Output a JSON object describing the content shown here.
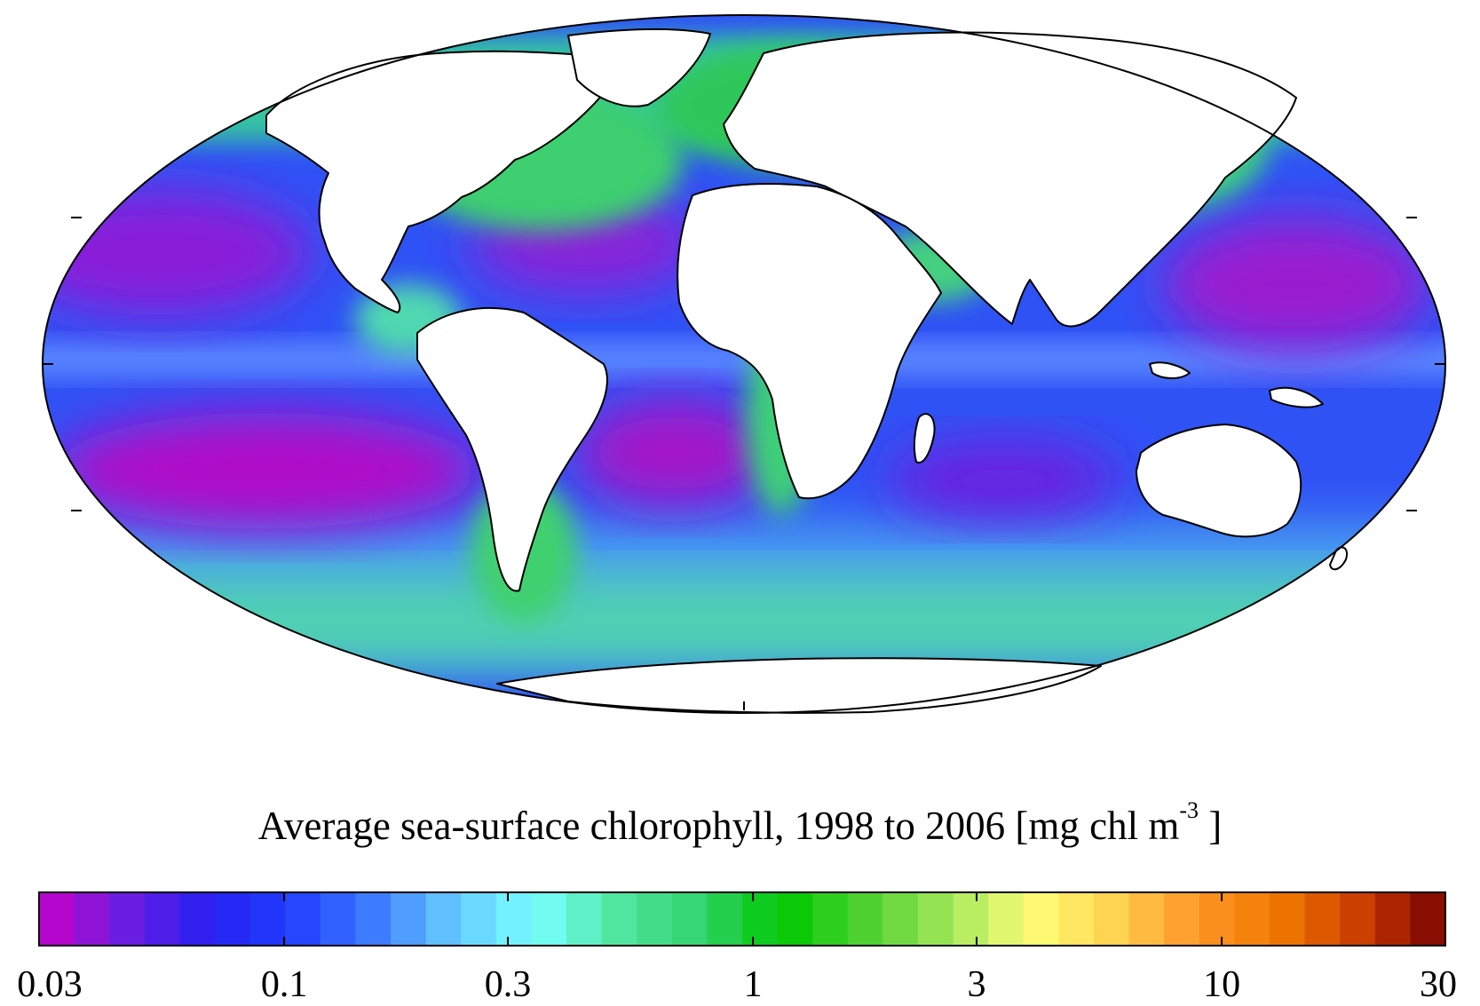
{
  "title": {
    "text": "Average sea-surface chlorophyll, 1998 to 2006 [mg chl m",
    "superscript": "-3",
    "suffix": " ]"
  },
  "colorbar": {
    "scale": "log",
    "range": [
      0.03,
      30
    ],
    "tick_labels": [
      "0.03",
      "0.1",
      "0.3",
      "1",
      "3",
      "10",
      "30"
    ],
    "tick_values": [
      0.03,
      0.1,
      0.3,
      1,
      3,
      10,
      30
    ],
    "bins": 40,
    "color_stops": [
      "#c800c8",
      "#6e1ee0",
      "#2a1ff0",
      "#1e3cff",
      "#3c78ff",
      "#64c8ff",
      "#78ffff",
      "#50e6a0",
      "#32d26e",
      "#00c800",
      "#50d232",
      "#a0e65a",
      "#ffff78",
      "#ffd250",
      "#ff9628",
      "#f07800",
      "#c83c00",
      "#780000"
    ]
  },
  "map": {
    "projection": "Mollweide",
    "land_color": "#ffffff",
    "coastline_color": "#000000"
  },
  "colors": {
    "oligotrophic_gyre": "#a018c8",
    "open_ocean": "#2830f0",
    "mid_ocean": "#3c7cf8",
    "shelf": "#64d2c8",
    "coastal": "#2ec85a",
    "productive": "#f0a030"
  }
}
